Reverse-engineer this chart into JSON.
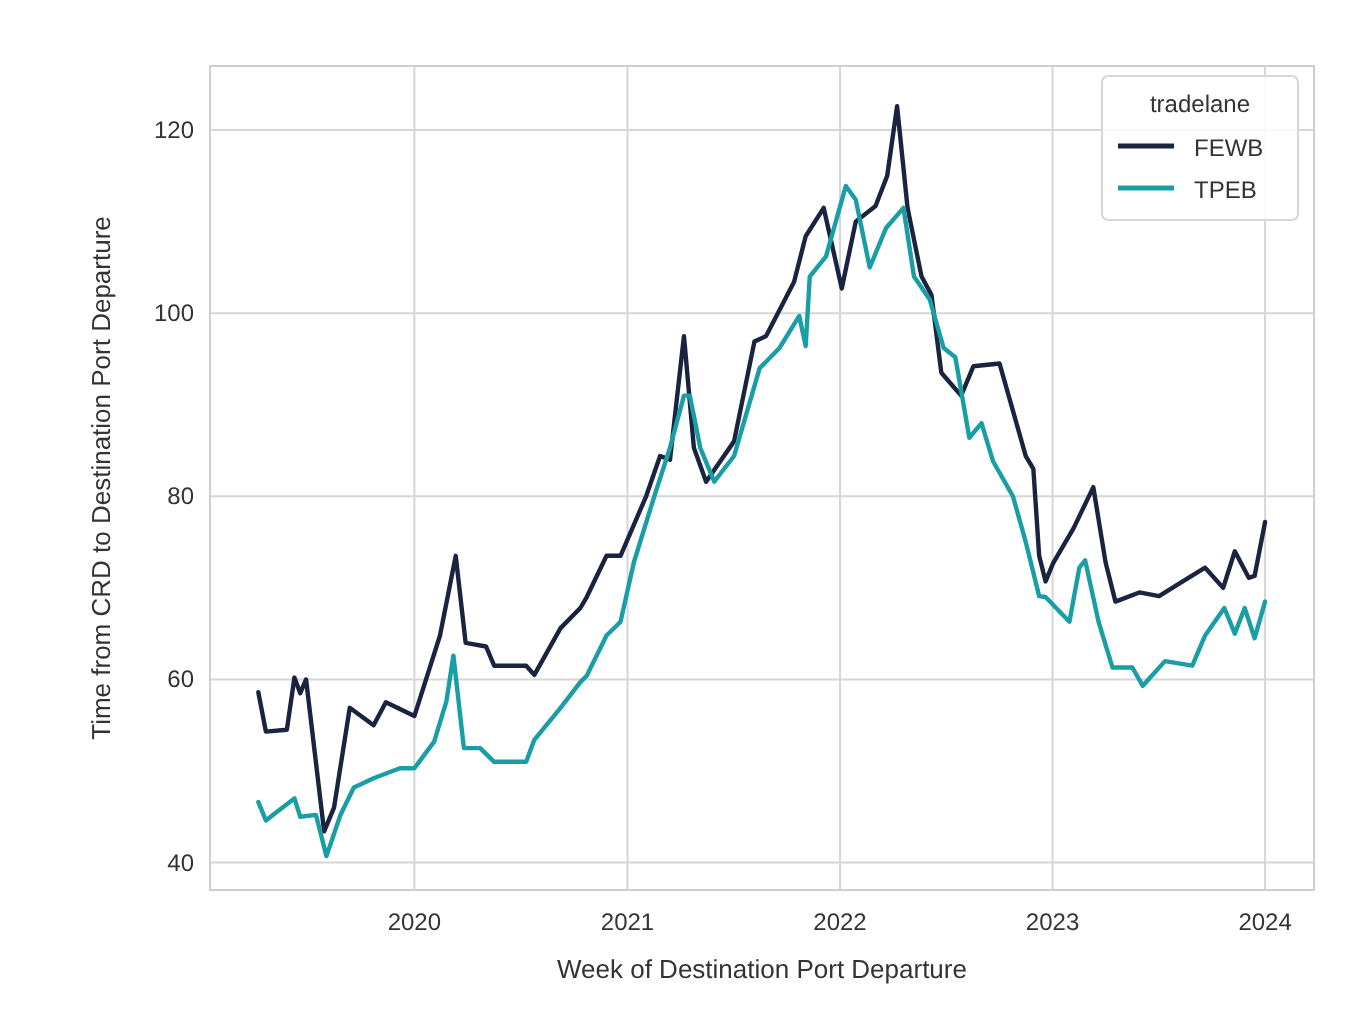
{
  "chart_data": {
    "type": "line",
    "xlabel": "Week of Destination Port Departure",
    "ylabel": "Time from CRD to Destination Port Departure",
    "legend_title": "tradelane",
    "legend": "top right",
    "grid": true,
    "line_style": "solid",
    "marker": "none",
    "xlim": [
      "2019-01-15",
      "2024-03-25"
    ],
    "xticks": [
      {
        "value": "2020-01-01",
        "label": "2020"
      },
      {
        "value": "2021-01-01",
        "label": "2021"
      },
      {
        "value": "2022-01-01",
        "label": "2022"
      },
      {
        "value": "2023-01-01",
        "label": "2023"
      },
      {
        "value": "2024-01-01",
        "label": "2024"
      }
    ],
    "ylim": [
      37,
      127
    ],
    "yticks": [
      40,
      60,
      80,
      100,
      120
    ],
    "series": [
      {
        "name": "FEWB",
        "color": "#1a2440",
        "x": [
          "2019-04-08",
          "2019-04-21",
          "2019-05-27",
          "2019-06-09",
          "2019-06-19",
          "2019-06-29",
          "2019-07-30",
          "2019-08-16",
          "2019-09-12",
          "2019-10-23",
          "2019-11-13",
          "2020-01-01",
          "2020-02-14",
          "2020-03-12",
          "2020-03-29",
          "2020-05-03",
          "2020-05-17",
          "2020-07-11",
          "2020-07-25",
          "2020-09-08",
          "2020-10-12",
          "2020-10-23",
          "2020-11-26",
          "2020-12-20",
          "2021-02-02",
          "2021-02-26",
          "2021-03-15",
          "2021-04-08",
          "2021-04-25",
          "2021-05-16",
          "2021-07-03",
          "2021-08-07",
          "2021-08-27",
          "2021-10-14",
          "2021-11-03",
          "2021-12-04",
          "2022-01-04",
          "2022-01-28",
          "2022-03-03",
          "2022-03-23",
          "2022-04-09",
          "2022-04-27",
          "2022-05-21",
          "2022-06-07",
          "2022-06-24",
          "2022-07-28",
          "2022-08-18",
          "2022-10-02",
          "2022-11-16",
          "2022-11-29",
          "2022-12-09",
          "2022-12-20",
          "2023-01-02",
          "2023-02-06",
          "2023-03-12",
          "2023-04-02",
          "2023-04-19",
          "2023-05-30",
          "2023-07-03",
          "2023-08-07",
          "2023-09-20",
          "2023-10-21",
          "2023-11-10",
          "2023-12-04",
          "2023-12-14",
          "2024-01-01"
        ],
        "values": [
          58.6,
          54.3,
          54.5,
          60.2,
          58.5,
          60,
          43.4,
          46,
          56.9,
          55,
          57.5,
          56,
          64.8,
          73.5,
          64,
          63.6,
          61.5,
          61.5,
          60.5,
          65.6,
          67.8,
          69,
          73.5,
          73.5,
          80,
          84.4,
          84,
          97.5,
          85.3,
          81.6,
          86,
          96.9,
          97.5,
          103.4,
          108.4,
          111.5,
          102.7,
          110,
          111.7,
          115,
          122.6,
          111.5,
          104,
          102,
          93.5,
          91,
          94.2,
          94.5,
          84.4,
          83,
          73.5,
          70.7,
          72.7,
          76.5,
          81,
          72.8,
          68.5,
          69.5,
          69.1,
          70.5,
          72.2,
          70,
          74,
          71.1,
          71.3,
          77.2
        ]
      },
      {
        "name": "TPEB",
        "color": "#1a9ea6",
        "x": [
          "2019-04-08",
          "2019-04-21",
          "2019-05-09",
          "2019-06-09",
          "2019-06-19",
          "2019-07-16",
          "2019-08-03",
          "2019-08-27",
          "2019-09-19",
          "2019-10-23",
          "2019-12-07",
          "2020-01-01",
          "2020-02-04",
          "2020-02-25",
          "2020-03-08",
          "2020-03-26",
          "2020-04-23",
          "2020-05-17",
          "2020-07-11",
          "2020-07-25",
          "2020-09-08",
          "2020-10-12",
          "2020-10-23",
          "2020-11-26",
          "2020-12-20",
          "2021-01-12",
          "2021-02-16",
          "2021-03-15",
          "2021-04-08",
          "2021-04-18",
          "2021-05-06",
          "2021-05-30",
          "2021-07-03",
          "2021-08-16",
          "2021-09-19",
          "2021-10-23",
          "2021-11-03",
          "2021-11-10",
          "2021-12-08",
          "2022-01-11",
          "2022-01-28",
          "2022-02-21",
          "2022-03-21",
          "2022-04-20",
          "2022-05-08",
          "2022-06-04",
          "2022-06-28",
          "2022-07-18",
          "2022-08-11",
          "2022-09-01",
          "2022-09-21",
          "2022-10-25",
          "2022-11-16",
          "2022-12-09",
          "2022-12-20",
          "2023-01-30",
          "2023-02-16",
          "2023-02-26",
          "2023-03-21",
          "2023-04-14",
          "2023-05-18",
          "2023-06-05",
          "2023-07-13",
          "2023-08-29",
          "2023-09-20",
          "2023-10-23",
          "2023-11-10",
          "2023-11-27",
          "2023-12-14",
          "2024-01-01"
        ],
        "values": [
          46.6,
          44.6,
          45.5,
          47,
          45,
          45.2,
          40.7,
          45.2,
          48.2,
          49.2,
          50.3,
          50.3,
          53.2,
          57.6,
          62.6,
          52.5,
          52.5,
          51,
          51,
          53.4,
          56.9,
          59.7,
          60.4,
          64.8,
          66.3,
          72.8,
          80,
          85.3,
          91,
          91,
          85.3,
          81.6,
          84.4,
          94,
          96.2,
          99.7,
          96.4,
          104,
          106.2,
          113.9,
          112.4,
          105,
          109.3,
          111.5,
          104,
          101.5,
          96.2,
          95.2,
          86.4,
          88,
          83.8,
          80,
          75,
          69.1,
          69,
          66.3,
          72.2,
          73,
          66.3,
          61.3,
          61.3,
          59.3,
          62,
          61.5,
          64.8,
          67.8,
          65,
          67.8,
          64.5,
          68.5
        ]
      }
    ]
  }
}
